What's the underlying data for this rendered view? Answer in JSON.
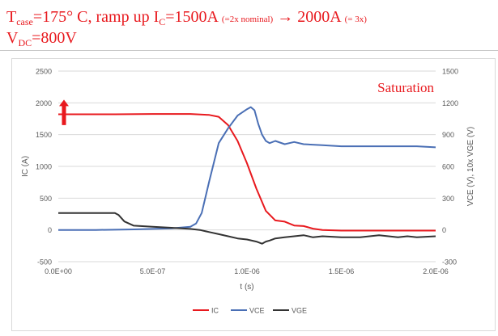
{
  "header": {
    "line1": {
      "t_sym": "T",
      "t_sub": "case",
      "t_rest": "=175° C, ramp up I",
      "i_sub": "C",
      "i_val": "=1500A",
      "i_note": "(=2x nominal)",
      "arrow": "→",
      "target": " 2000A",
      "target_note": "(= 3x)"
    },
    "line2": {
      "v_sym": "V",
      "v_sub": "DC",
      "v_val": "=800V"
    }
  },
  "colors": {
    "title": "#e8191e",
    "ic": "#e8191e",
    "vce": "#4a6fb5",
    "vge": "#333333",
    "grid": "#d9d9d9"
  },
  "chart_data": {
    "type": "line",
    "title": "",
    "annotation": "Saturation",
    "xlabel": "t (s)",
    "ylabel": "IC (A)",
    "y2label": "VCE (V), 10x VGE (V)",
    "xlim": [
      0,
      2e-06
    ],
    "ylim": [
      -500,
      2500
    ],
    "y2lim": [
      -300,
      1500
    ],
    "x_ticks": [
      "0.0E+00",
      "5.0E-07",
      "1.0E-06",
      "1.5E-06",
      "2.0E-06"
    ],
    "y_ticks": [
      "-500",
      "0",
      "500",
      "1000",
      "1500",
      "2000",
      "2500"
    ],
    "y2_ticks": [
      "-300",
      "0",
      "300",
      "600",
      "900",
      "1200",
      "1500"
    ],
    "grid": true,
    "legend_position": "bottom",
    "series": [
      {
        "name": "IC",
        "axis": "left",
        "x": [
          0,
          1e-07,
          3e-07,
          5e-07,
          7e-07,
          8e-07,
          8.5e-07,
          9e-07,
          9.5e-07,
          1e-06,
          1.05e-06,
          1.1e-06,
          1.15e-06,
          1.2e-06,
          1.25e-06,
          1.3e-06,
          1.35e-06,
          1.4e-06,
          1.5e-06,
          1.6e-06,
          1.8e-06,
          2e-06
        ],
        "y": [
          1820,
          1820,
          1820,
          1825,
          1825,
          1810,
          1780,
          1650,
          1400,
          1050,
          650,
          300,
          150,
          130,
          70,
          60,
          20,
          0,
          -10,
          -10,
          -10,
          -10
        ]
      },
      {
        "name": "VCE",
        "axis": "right",
        "x": [
          0,
          2e-07,
          4e-07,
          6e-07,
          7e-07,
          7.3e-07,
          7.6e-07,
          8e-07,
          8.5e-07,
          9e-07,
          9.5e-07,
          1e-06,
          1.02e-06,
          1.04e-06,
          1.06e-06,
          1.08e-06,
          1.1e-06,
          1.12e-06,
          1.15e-06,
          1.2e-06,
          1.25e-06,
          1.3e-06,
          1.4e-06,
          1.5e-06,
          1.6e-06,
          1.7e-06,
          1.8e-06,
          1.9e-06,
          2e-06
        ],
        "y": [
          0,
          0,
          5,
          15,
          30,
          60,
          160,
          460,
          820,
          960,
          1080,
          1140,
          1160,
          1130,
          1000,
          900,
          840,
          820,
          840,
          810,
          830,
          810,
          800,
          790,
          790,
          790,
          790,
          790,
          780
        ]
      },
      {
        "name": "VGE",
        "axis": "right",
        "x": [
          0,
          1e-07,
          2e-07,
          3e-07,
          3.2e-07,
          3.5e-07,
          4e-07,
          5e-07,
          6e-07,
          7e-07,
          7.5e-07,
          8e-07,
          8.5e-07,
          9e-07,
          9.5e-07,
          1e-06,
          1.05e-06,
          1.08e-06,
          1.1e-06,
          1.12e-06,
          1.15e-06,
          1.2e-06,
          1.25e-06,
          1.3e-06,
          1.35e-06,
          1.4e-06,
          1.5e-06,
          1.6e-06,
          1.7e-06,
          1.75e-06,
          1.8e-06,
          1.85e-06,
          1.9e-06,
          2e-06
        ],
        "y": [
          160,
          160,
          160,
          160,
          140,
          80,
          40,
          30,
          20,
          10,
          0,
          -20,
          -40,
          -60,
          -80,
          -90,
          -110,
          -130,
          -110,
          -100,
          -80,
          -70,
          -60,
          -50,
          -70,
          -60,
          -70,
          -70,
          -50,
          -60,
          -70,
          -60,
          -70,
          -60
        ]
      }
    ]
  }
}
